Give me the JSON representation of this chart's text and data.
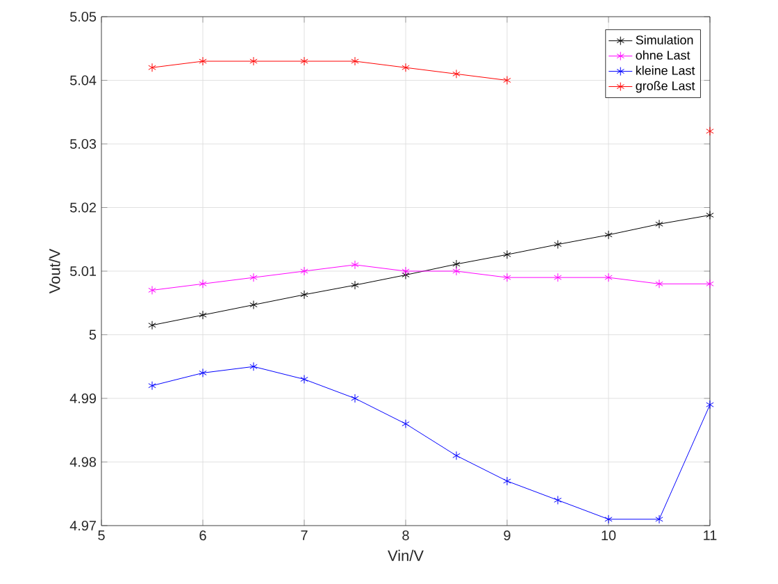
{
  "chart_data": {
    "type": "line",
    "xlabel": "Vin/V",
    "ylabel": "Vout/V",
    "x": [
      5.5,
      6,
      6.5,
      7,
      7.5,
      8,
      8.5,
      9,
      9.5,
      10,
      10.5,
      11
    ],
    "series": [
      {
        "name": "Simulation",
        "color": "#000000",
        "values": [
          5.0015,
          5.0031,
          5.0047,
          5.0063,
          5.0078,
          5.0094,
          5.0111,
          5.0126,
          5.0142,
          5.0157,
          5.0174,
          5.0188
        ]
      },
      {
        "name": "ohne Last",
        "color": "#ff00ff",
        "values": [
          5.007,
          5.008,
          5.009,
          5.01,
          5.011,
          5.01,
          5.01,
          5.009,
          5.009,
          5.009,
          5.008,
          5.008
        ]
      },
      {
        "name": "kleine Last",
        "color": "#0000ff",
        "values": [
          4.992,
          4.994,
          4.995,
          4.993,
          4.99,
          4.986,
          4.981,
          4.977,
          4.974,
          4.971,
          4.971,
          4.989
        ]
      },
      {
        "name": "große Last",
        "color": "#ff0000",
        "values": [
          5.042,
          5.043,
          5.043,
          5.043,
          5.043,
          5.042,
          5.041,
          5.04,
          null,
          null,
          null,
          5.032
        ]
      }
    ],
    "xlim": [
      5,
      11
    ],
    "ylim": [
      4.97,
      5.05
    ],
    "xticks": [
      5,
      6,
      7,
      8,
      9,
      10,
      11
    ],
    "yticks": [
      4.97,
      4.98,
      4.99,
      5,
      5.01,
      5.02,
      5.03,
      5.04,
      5.05
    ],
    "grid": true,
    "legend": "top right",
    "marker": "cross",
    "line_style": "solid"
  }
}
